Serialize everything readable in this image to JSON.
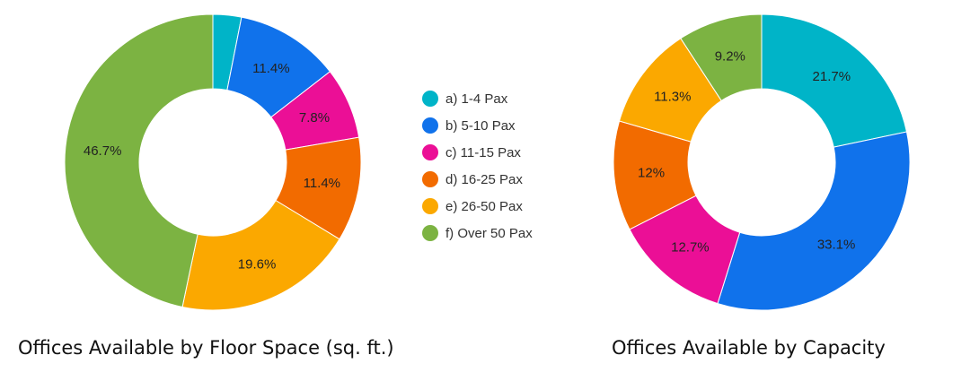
{
  "legend": [
    {
      "label": "a) 1-4 Pax",
      "color": "#00b4c8"
    },
    {
      "label": "b) 5-10 Pax",
      "color": "#1072eb"
    },
    {
      "label": "c) 11-15 Pax",
      "color": "#eb0f96"
    },
    {
      "label": "d) 16-25 Pax",
      "color": "#f26b00"
    },
    {
      "label": "e) 26-50 Pax",
      "color": "#fba800"
    },
    {
      "label": "f) Over 50 Pax",
      "color": "#7cb342"
    }
  ],
  "chart_data": [
    {
      "type": "pie",
      "title": "Offices Available by Floor Space (sq. ft.)",
      "categories": [
        "a) 1-4 Pax",
        "b) 5-10 Pax",
        "c) 11-15 Pax",
        "d) 16-25 Pax",
        "e) 26-50 Pax",
        "f) Over 50 Pax"
      ],
      "values": [
        3.1,
        11.4,
        7.8,
        11.4,
        19.6,
        46.7
      ],
      "labels": [
        "",
        "11.4%",
        "7.8%",
        "11.4%",
        "19.6%",
        "46.7%"
      ],
      "donut": true
    },
    {
      "type": "pie",
      "title": "Offices Available by Capacity",
      "categories": [
        "a) 1-4 Pax",
        "b) 5-10 Pax",
        "c) 11-15 Pax",
        "d) 16-25 Pax",
        "e) 26-50 Pax",
        "f) Over 50 Pax"
      ],
      "values": [
        21.7,
        33.1,
        12.7,
        12,
        11.3,
        9.2
      ],
      "labels": [
        "21.7%",
        "33.1%",
        "12.7%",
        "12%",
        "11.3%",
        "9.2%"
      ],
      "donut": true
    }
  ]
}
